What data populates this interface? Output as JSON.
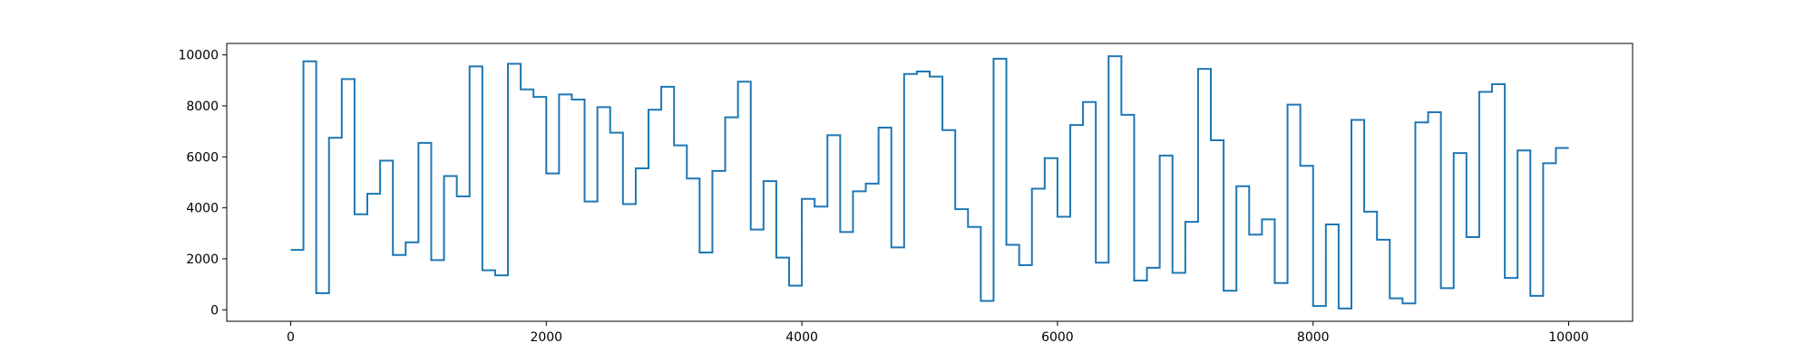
{
  "chart_data": {
    "type": "line",
    "title": "",
    "xlabel": "",
    "ylabel": "",
    "xlim": [
      -500,
      10500
    ],
    "ylim": [
      -450,
      10450
    ],
    "xticks": [
      0,
      2000,
      4000,
      6000,
      8000,
      10000
    ],
    "xtick_labels": [
      "0",
      "2000",
      "4000",
      "6000",
      "8000",
      "10000"
    ],
    "yticks": [
      0,
      2000,
      4000,
      6000,
      8000,
      10000
    ],
    "ytick_labels": [
      "0",
      "2000",
      "4000",
      "6000",
      "8000",
      "10000"
    ],
    "grid": false,
    "legend": "none",
    "line_color": "#1f77b4",
    "series": [
      {
        "step_width": 100,
        "x_start": 0,
        "x_end": 10000,
        "values": [
          2350,
          9750,
          650,
          6750,
          9050,
          3750,
          4550,
          5850,
          2150,
          2650,
          6550,
          1950,
          5250,
          4450,
          9550,
          1550,
          1350,
          9650,
          8650,
          8350,
          5350,
          8450,
          8250,
          4250,
          7950,
          6950,
          4150,
          5550,
          7850,
          8750,
          6450,
          5150,
          2250,
          5450,
          7550,
          8950,
          3150,
          5050,
          2050,
          950,
          4350,
          4050,
          6850,
          3050,
          4650,
          4950,
          7150,
          2450,
          9250,
          9350,
          9150,
          7050,
          3950,
          3250,
          350,
          9850,
          2550,
          1750,
          4750,
          5950,
          3650,
          7250,
          8150,
          1850,
          9950,
          7650,
          1150,
          1650,
          6050,
          1450,
          3450,
          9450,
          6650,
          750,
          4850,
          2950,
          3550,
          1050,
          8050,
          5650,
          150,
          3350,
          50,
          7450,
          3850,
          2750,
          450,
          250,
          7350,
          7750,
          850,
          6150,
          2850,
          8550,
          8850,
          1250,
          6250,
          550,
          5750,
          6350
        ]
      }
    ]
  }
}
